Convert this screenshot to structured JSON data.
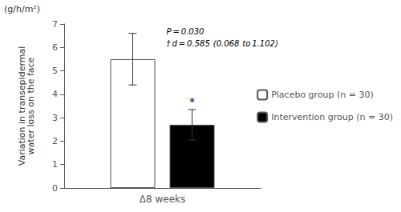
{
  "chart_data": {
    "type": "bar",
    "categories": [
      "Δ8 weeks"
    ],
    "series": [
      {
        "name": "Placebo group (n = 30)",
        "color": "white",
        "values": [
          5.5
        ],
        "errors": [
          1.1
        ]
      },
      {
        "name": "Intervention group (n = 30)",
        "color": "black",
        "values": [
          2.7
        ],
        "errors": [
          0.65
        ],
        "annotation": "*"
      }
    ],
    "y_label": "Variation in transepidermal\nwater loss on the face",
    "y_unit": "(g/h/m²)",
    "annotations": [
      "P = 0.030",
      "† d = 0.585  (0.068  to 1.102)"
    ],
    "ylim": [
      0.0,
      7.0
    ],
    "yticks": [
      0.0,
      1.0,
      2.0,
      3.0,
      4.0,
      5.0,
      6.0,
      7.0
    ],
    "grid": false,
    "legend": "right"
  }
}
